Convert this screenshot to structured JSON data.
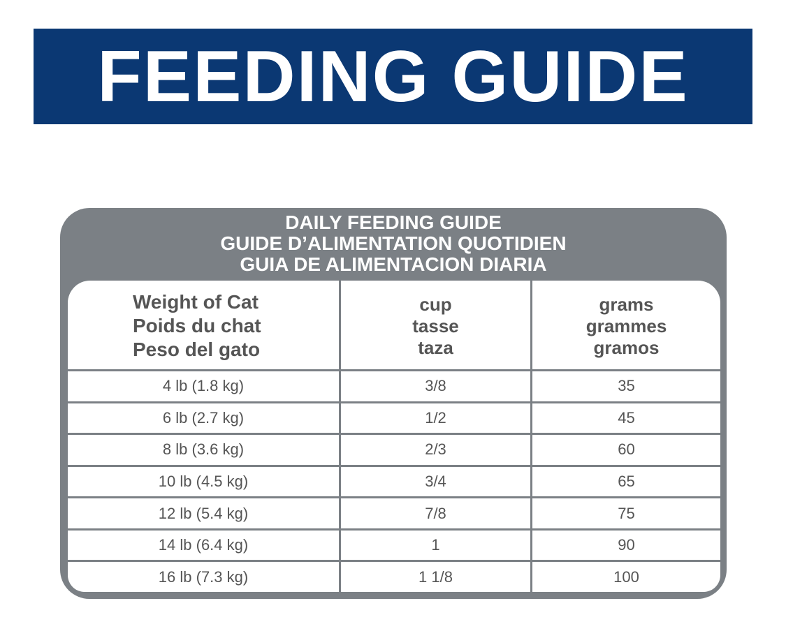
{
  "banner": {
    "title": "FEEDING GUIDE"
  },
  "table": {
    "title": [
      "DAILY FEEDING GUIDE",
      "GUIDE D’ALIMENTATION QUOTIDIEN",
      "GUIA DE ALIMENTACION DIARIA"
    ],
    "columns": [
      [
        "Weight of Cat",
        "Poids du chat",
        "Peso del gato"
      ],
      [
        "cup",
        "tasse",
        "taza"
      ],
      [
        "grams",
        "grammes",
        "gramos"
      ]
    ],
    "rows": [
      [
        "4 lb (1.8 kg)",
        "3/8",
        35
      ],
      [
        "6 lb (2.7 kg)",
        "1/2",
        45
      ],
      [
        "8 lb (3.6 kg)",
        "2/3",
        60
      ],
      [
        "10 lb (4.5 kg)",
        "3/4",
        65
      ],
      [
        "12 lb (5.4 kg)",
        "7/8",
        75
      ],
      [
        "14 lb (6.4 kg)",
        "1",
        90
      ],
      [
        "16 lb (7.3 kg)",
        "1 1/8",
        100
      ]
    ]
  }
}
